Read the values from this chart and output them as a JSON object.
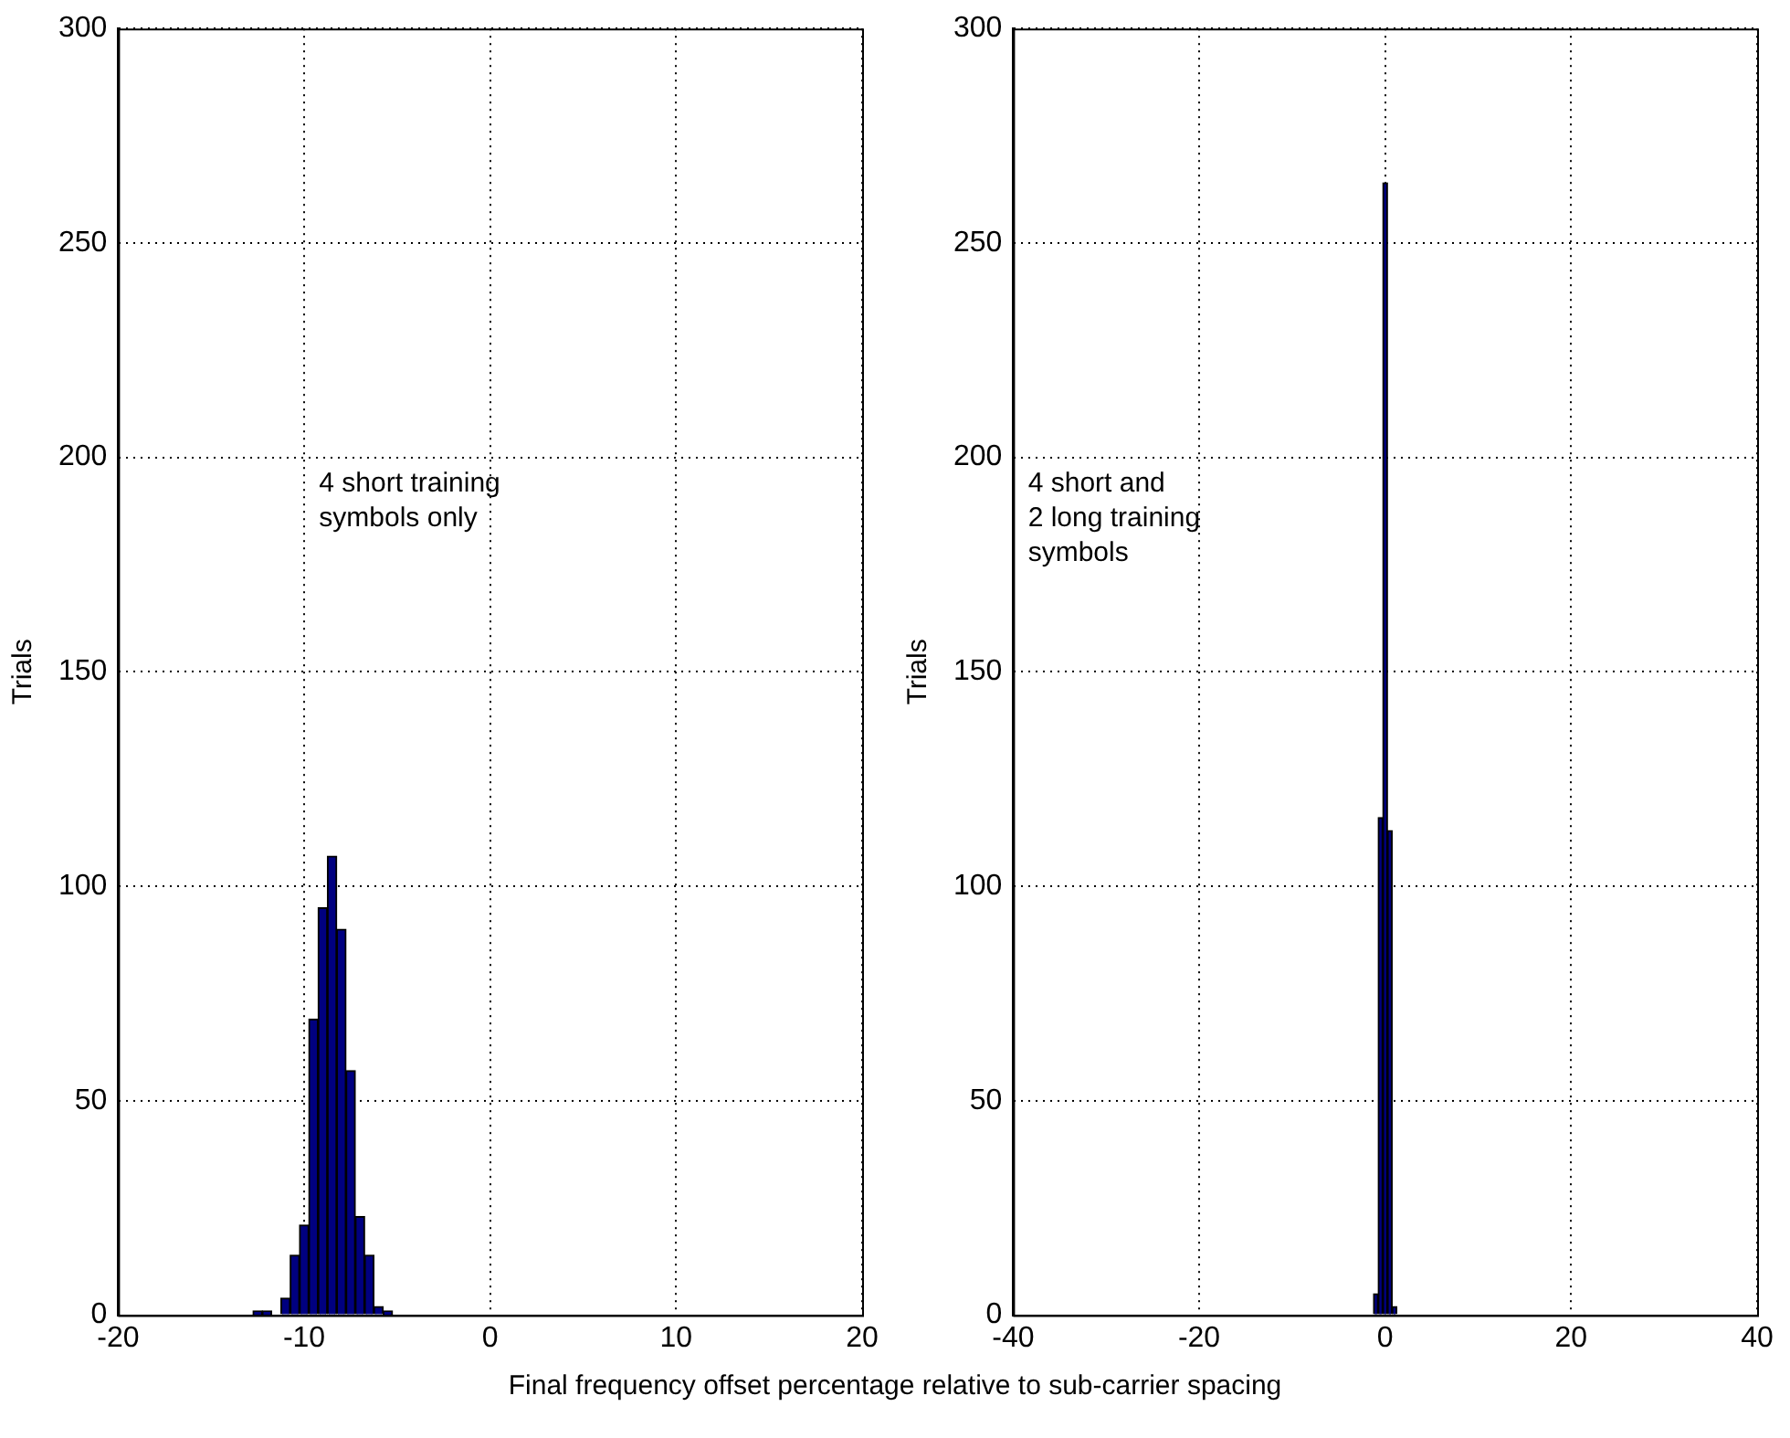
{
  "chart_data": [
    {
      "type": "histogram",
      "ylabel": "Trials",
      "color": "#000080",
      "bins": [
        -12.75,
        -12.25,
        -11.75,
        -11.25,
        -10.75,
        -10.25,
        -9.75,
        -9.25,
        -8.75,
        -8.25,
        -7.75,
        -7.25,
        -6.75,
        -6.25,
        -5.75,
        -5.25
      ],
      "values": [
        1,
        1,
        0,
        4,
        14,
        21,
        69,
        95,
        107,
        90,
        57,
        23,
        14,
        2,
        1
      ],
      "xlim": [
        -20,
        20
      ],
      "xticks": [
        -20,
        -10,
        0,
        10,
        20
      ],
      "ylim": [
        0,
        300
      ],
      "yticks": [
        0,
        50,
        100,
        150,
        200,
        250,
        300
      ],
      "grid": true,
      "annotations": [
        "4 short training\nsymbols only"
      ]
    },
    {
      "type": "histogram",
      "ylabel": "Trials",
      "xlabel": "Final frequency offset percentage relative to sub-carrier spacing",
      "color": "#000080",
      "bins": [
        -1.25,
        -0.75,
        -0.25,
        0.25,
        0.75,
        1.25
      ],
      "values": [
        5,
        116,
        264,
        113,
        2
      ],
      "xlim": [
        -40,
        40
      ],
      "xticks": [
        -40,
        -20,
        0,
        20,
        40
      ],
      "ylim": [
        0,
        300
      ],
      "yticks": [
        0,
        50,
        100,
        150,
        200,
        250,
        300
      ],
      "grid": true,
      "annotations": [
        "4 short and\n2 long training\nsymbols"
      ]
    }
  ]
}
